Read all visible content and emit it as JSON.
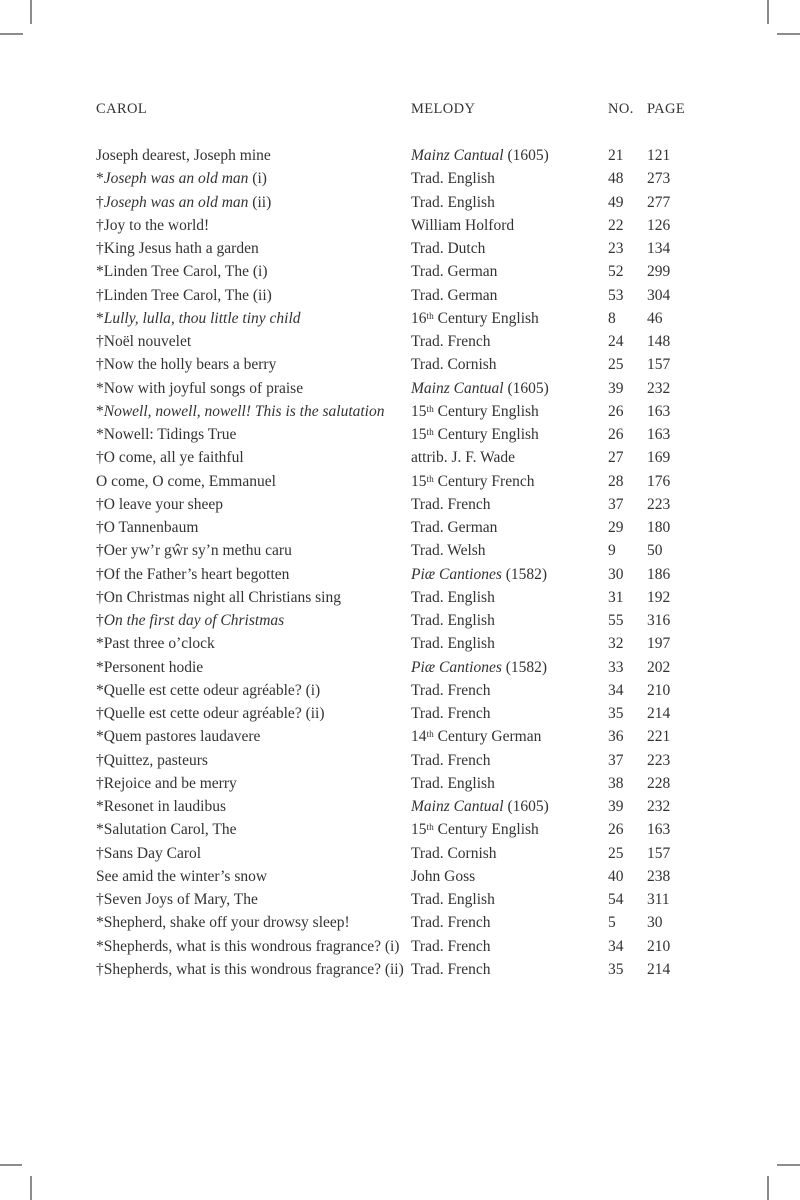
{
  "document": {
    "columns": {
      "carol": "CAROL",
      "melody": "MELODY",
      "no": "NO.",
      "page": "PAGE"
    },
    "colors": {
      "text": "#333333",
      "crop_mark": "#8c8c8c",
      "background": "#ffffff"
    },
    "rows": [
      {
        "carol": [
          {
            "t": "Joseph dearest, Joseph mine",
            "s": "r"
          }
        ],
        "melody": [
          {
            "t": "Mainz Cantual",
            "s": "i"
          },
          {
            "t": " (1605)",
            "s": "r"
          }
        ],
        "no": "21",
        "page": "121"
      },
      {
        "carol": [
          {
            "t": "*",
            "s": "r"
          },
          {
            "t": "Joseph was an old man",
            "s": "i"
          },
          {
            "t": " (i)",
            "s": "r"
          }
        ],
        "melody": [
          {
            "t": "Trad. English",
            "s": "r"
          }
        ],
        "no": "48",
        "page": "273"
      },
      {
        "carol": [
          {
            "t": "†",
            "s": "r"
          },
          {
            "t": "Joseph was an old man",
            "s": "i"
          },
          {
            "t": " (ii)",
            "s": "r"
          }
        ],
        "melody": [
          {
            "t": "Trad. English",
            "s": "r"
          }
        ],
        "no": "49",
        "page": "277"
      },
      {
        "carol": [
          {
            "t": "†Joy to the world!",
            "s": "r"
          }
        ],
        "melody": [
          {
            "t": "William Holford",
            "s": "r"
          }
        ],
        "no": "22",
        "page": "126"
      },
      {
        "carol": [
          {
            "t": "†King Jesus hath a garden",
            "s": "r"
          }
        ],
        "melody": [
          {
            "t": "Trad. Dutch",
            "s": "r"
          }
        ],
        "no": "23",
        "page": "134"
      },
      {
        "carol": [
          {
            "t": "*Linden Tree Carol, The (i)",
            "s": "r"
          }
        ],
        "melody": [
          {
            "t": "Trad. German",
            "s": "r"
          }
        ],
        "no": "52",
        "page": "299"
      },
      {
        "carol": [
          {
            "t": "†Linden Tree Carol, The (ii)",
            "s": "r"
          }
        ],
        "melody": [
          {
            "t": "Trad. German",
            "s": "r"
          }
        ],
        "no": "53",
        "page": "304"
      },
      {
        "carol": [
          {
            "t": "*",
            "s": "r"
          },
          {
            "t": "Lully, lulla, thou little tiny child",
            "s": "i"
          }
        ],
        "melody": [
          {
            "t": "16",
            "s": "r"
          },
          {
            "t": "th",
            "s": "sup"
          },
          {
            "t": " Century English",
            "s": "r"
          }
        ],
        "no": "8",
        "page": "46"
      },
      {
        "carol": [
          {
            "t": "†Noël nouvelet",
            "s": "r"
          }
        ],
        "melody": [
          {
            "t": "Trad. French",
            "s": "r"
          }
        ],
        "no": "24",
        "page": "148"
      },
      {
        "carol": [
          {
            "t": "†Now the holly bears a berry",
            "s": "r"
          }
        ],
        "melody": [
          {
            "t": "Trad. Cornish",
            "s": "r"
          }
        ],
        "no": "25",
        "page": "157"
      },
      {
        "carol": [
          {
            "t": "*Now with joyful songs of praise",
            "s": "r"
          }
        ],
        "melody": [
          {
            "t": "Mainz Cantual",
            "s": "i"
          },
          {
            "t": " (1605)",
            "s": "r"
          }
        ],
        "no": "39",
        "page": "232"
      },
      {
        "carol": [
          {
            "t": "*",
            "s": "r"
          },
          {
            "t": "Nowell, nowell, nowell! This is the salutation",
            "s": "i"
          }
        ],
        "melody": [
          {
            "t": "15",
            "s": "r"
          },
          {
            "t": "th",
            "s": "sup"
          },
          {
            "t": " Century English",
            "s": "r"
          }
        ],
        "no": "26",
        "page": "163"
      },
      {
        "carol": [
          {
            "t": "*Nowell: Tidings True",
            "s": "r"
          }
        ],
        "melody": [
          {
            "t": "15",
            "s": "r"
          },
          {
            "t": "th",
            "s": "sup"
          },
          {
            "t": " Century English",
            "s": "r"
          }
        ],
        "no": "26",
        "page": "163"
      },
      {
        "carol": [
          {
            "t": "†O come, all ye faithful",
            "s": "r"
          }
        ],
        "melody": [
          {
            "t": "attrib. J. F. Wade",
            "s": "r"
          }
        ],
        "no": "27",
        "page": "169"
      },
      {
        "carol": [
          {
            "t": "O come, O come, Emmanuel",
            "s": "r"
          }
        ],
        "melody": [
          {
            "t": "15",
            "s": "r"
          },
          {
            "t": "th",
            "s": "sup"
          },
          {
            "t": " Century French",
            "s": "r"
          }
        ],
        "no": "28",
        "page": "176"
      },
      {
        "carol": [
          {
            "t": "†O leave your sheep",
            "s": "r"
          }
        ],
        "melody": [
          {
            "t": "Trad. French",
            "s": "r"
          }
        ],
        "no": "37",
        "page": "223"
      },
      {
        "carol": [
          {
            "t": "†O Tannenbaum",
            "s": "r"
          }
        ],
        "melody": [
          {
            "t": "Trad. German",
            "s": "r"
          }
        ],
        "no": "29",
        "page": "180"
      },
      {
        "carol": [
          {
            "t": "†Oer yw’r gŵr sy’n methu caru",
            "s": "r"
          }
        ],
        "melody": [
          {
            "t": "Trad. Welsh",
            "s": "r"
          }
        ],
        "no": "9",
        "page": "50"
      },
      {
        "carol": [
          {
            "t": "†Of the Father’s heart begotten",
            "s": "r"
          }
        ],
        "melody": [
          {
            "t": "Piæ Cantiones",
            "s": "i"
          },
          {
            "t": " (1582)",
            "s": "r"
          }
        ],
        "no": "30",
        "page": "186"
      },
      {
        "carol": [
          {
            "t": "†On Christmas night all Christians sing",
            "s": "r"
          }
        ],
        "melody": [
          {
            "t": "Trad. English",
            "s": "r"
          }
        ],
        "no": "31",
        "page": "192"
      },
      {
        "carol": [
          {
            "t": "†",
            "s": "r"
          },
          {
            "t": "On the first day of Christmas",
            "s": "i"
          }
        ],
        "melody": [
          {
            "t": "Trad. English",
            "s": "r"
          }
        ],
        "no": "55",
        "page": "316"
      },
      {
        "carol": [
          {
            "t": "*Past three o’clock",
            "s": "r"
          }
        ],
        "melody": [
          {
            "t": "Trad. English",
            "s": "r"
          }
        ],
        "no": "32",
        "page": "197"
      },
      {
        "carol": [
          {
            "t": "*Personent hodie",
            "s": "r"
          }
        ],
        "melody": [
          {
            "t": "Piæ Cantiones",
            "s": "i"
          },
          {
            "t": " (1582)",
            "s": "r"
          }
        ],
        "no": "33",
        "page": "202"
      },
      {
        "carol": [
          {
            "t": "*Quelle est cette odeur agréable? (i)",
            "s": "r"
          }
        ],
        "melody": [
          {
            "t": "Trad. French",
            "s": "r"
          }
        ],
        "no": "34",
        "page": "210"
      },
      {
        "carol": [
          {
            "t": "†Quelle est cette odeur agréable? (ii)",
            "s": "r"
          }
        ],
        "melody": [
          {
            "t": "Trad. French",
            "s": "r"
          }
        ],
        "no": "35",
        "page": "214"
      },
      {
        "carol": [
          {
            "t": "*Quem pastores laudavere",
            "s": "r"
          }
        ],
        "melody": [
          {
            "t": "14",
            "s": "r"
          },
          {
            "t": "th",
            "s": "sup"
          },
          {
            "t": " Century German",
            "s": "r"
          }
        ],
        "no": "36",
        "page": "221"
      },
      {
        "carol": [
          {
            "t": "†Quittez, pasteurs",
            "s": "r"
          }
        ],
        "melody": [
          {
            "t": "Trad. French",
            "s": "r"
          }
        ],
        "no": "37",
        "page": "223"
      },
      {
        "carol": [
          {
            "t": "†Rejoice and be merry",
            "s": "r"
          }
        ],
        "melody": [
          {
            "t": "Trad. English",
            "s": "r"
          }
        ],
        "no": "38",
        "page": "228"
      },
      {
        "carol": [
          {
            "t": "*Resonet in laudibus",
            "s": "r"
          }
        ],
        "melody": [
          {
            "t": "Mainz Cantual",
            "s": "i"
          },
          {
            "t": " (1605)",
            "s": "r"
          }
        ],
        "no": "39",
        "page": "232"
      },
      {
        "carol": [
          {
            "t": "*Salutation Carol, The",
            "s": "r"
          }
        ],
        "melody": [
          {
            "t": "15",
            "s": "r"
          },
          {
            "t": "th",
            "s": "sup"
          },
          {
            "t": " Century English",
            "s": "r"
          }
        ],
        "no": "26",
        "page": "163"
      },
      {
        "carol": [
          {
            "t": "†Sans Day Carol",
            "s": "r"
          }
        ],
        "melody": [
          {
            "t": "Trad. Cornish",
            "s": "r"
          }
        ],
        "no": "25",
        "page": "157"
      },
      {
        "carol": [
          {
            "t": "See amid the winter’s snow",
            "s": "r"
          }
        ],
        "melody": [
          {
            "t": "John Goss",
            "s": "r"
          }
        ],
        "no": "40",
        "page": "238"
      },
      {
        "carol": [
          {
            "t": "†Seven Joys of Mary, The",
            "s": "r"
          }
        ],
        "melody": [
          {
            "t": "Trad. English",
            "s": "r"
          }
        ],
        "no": "54",
        "page": "311"
      },
      {
        "carol": [
          {
            "t": "*Shepherd, shake off your drowsy sleep!",
            "s": "r"
          }
        ],
        "melody": [
          {
            "t": "Trad. French",
            "s": "r"
          }
        ],
        "no": "5",
        "page": "30"
      },
      {
        "carol": [
          {
            "t": "*Shepherds, what is this wondrous fragrance? (i)",
            "s": "r"
          }
        ],
        "melody": [
          {
            "t": "Trad. French",
            "s": "r"
          }
        ],
        "no": "34",
        "page": "210"
      },
      {
        "carol": [
          {
            "t": "†Shepherds, what is this wondrous fragrance? (ii)",
            "s": "r"
          }
        ],
        "melody": [
          {
            "t": "Trad. French",
            "s": "r"
          }
        ],
        "no": "35",
        "page": "214"
      }
    ]
  }
}
